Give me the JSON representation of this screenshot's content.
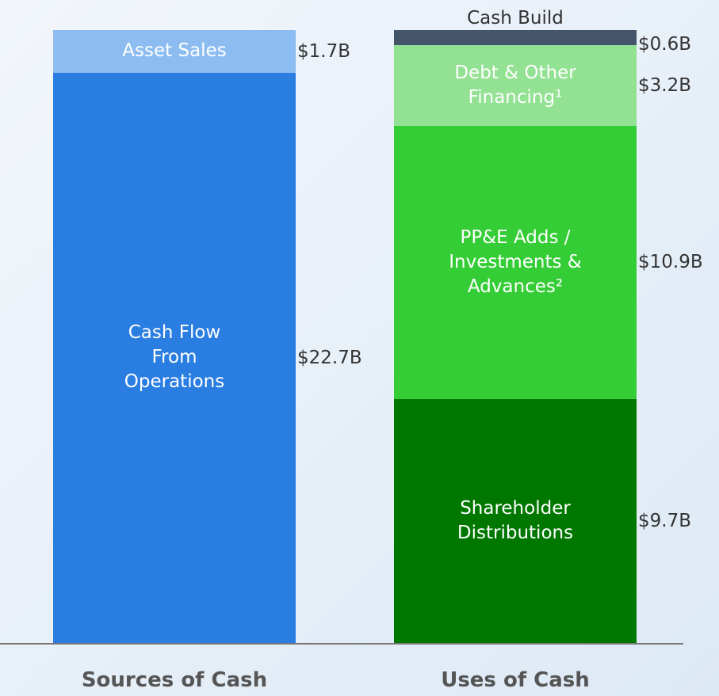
{
  "chart_data": {
    "type": "stacked_bar",
    "categories": [
      "Sources of Cash",
      "Uses of Cash"
    ],
    "ylim": [
      0,
      24.4
    ],
    "series": [
      {
        "name": "Cash Flow From Operations",
        "color": "#2a7de1",
        "values": [
          22.7,
          null
        ],
        "value_labels": [
          "$22.7B",
          null
        ]
      },
      {
        "name": "Asset Sales",
        "color": "#8cbcf0",
        "values": [
          1.7,
          null
        ],
        "value_labels": [
          "$1.7B",
          null
        ]
      },
      {
        "name": "Shareholder Distributions",
        "color": "#007800",
        "values": [
          null,
          9.7
        ],
        "value_labels": [
          null,
          "$9.7B"
        ]
      },
      {
        "name": "PP&E Adds / Investments & Advances²",
        "color": "#35cd35",
        "values": [
          null,
          10.9
        ],
        "value_labels": [
          null,
          "$10.9B"
        ]
      },
      {
        "name": "Debt & Other Financing¹",
        "color": "#93e193",
        "values": [
          null,
          3.2
        ],
        "value_labels": [
          null,
          "$3.2B"
        ]
      },
      {
        "name": "Cash Build",
        "color": "#44546a",
        "values": [
          null,
          0.6
        ],
        "value_labels": [
          null,
          "$0.6B"
        ]
      }
    ]
  }
}
